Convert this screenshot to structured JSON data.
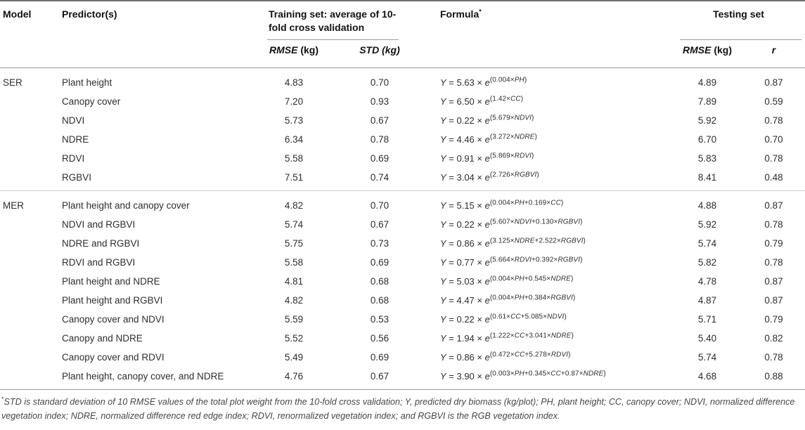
{
  "table": {
    "headers": {
      "model": "Model",
      "predictors": "Predictor(s)",
      "training_group": "Training set: average of 10-fold cross validation",
      "formula": "Formula",
      "formula_marker": "*",
      "testing_group": "Testing set",
      "train_rmse_label": "RMSE",
      "train_rmse_unit": " (kg)",
      "train_std_label": "STD (kg)",
      "test_rmse_label": "RMSE",
      "test_rmse_unit": " (kg)",
      "r_label": "r"
    },
    "formula_template": {
      "y": "Y",
      "eq": " = ",
      "times": " × ",
      "base": "e"
    },
    "sections": [
      {
        "model": "SER",
        "rows": [
          {
            "predictor": "Plant height",
            "train_rmse": "4.83",
            "train_std": "0.70",
            "formula": {
              "coef": "5.63",
              "exp": "(0.004×PH)"
            },
            "test_rmse": "4.89",
            "r": "0.87"
          },
          {
            "predictor": "Canopy cover",
            "train_rmse": "7.20",
            "train_std": "0.93",
            "formula": {
              "coef": "6.50",
              "exp": "(1.42×CC)"
            },
            "test_rmse": "7.89",
            "r": "0.59"
          },
          {
            "predictor": "NDVI",
            "train_rmse": "5.73",
            "train_std": "0.67",
            "formula": {
              "coef": "0.22",
              "exp": "(5.679×NDVI)"
            },
            "test_rmse": "5.92",
            "r": "0.78"
          },
          {
            "predictor": "NDRE",
            "train_rmse": "6.34",
            "train_std": "0.78",
            "formula": {
              "coef": "4.46",
              "exp": "(3.272×NDRE)"
            },
            "test_rmse": "6.70",
            "r": "0.70"
          },
          {
            "predictor": "RDVI",
            "train_rmse": "5.58",
            "train_std": "0.69",
            "formula": {
              "coef": "0.91",
              "exp": "(5.869×RDVI)"
            },
            "test_rmse": "5.83",
            "r": "0.78"
          },
          {
            "predictor": "RGBVI",
            "train_rmse": "7.51",
            "train_std": "0.74",
            "formula": {
              "coef": "3.04",
              "exp": "(2.726×RGBVI)"
            },
            "test_rmse": "8.41",
            "r": "0.48"
          }
        ]
      },
      {
        "model": "MER",
        "rows": [
          {
            "predictor": "Plant height and canopy cover",
            "train_rmse": "4.82",
            "train_std": "0.70",
            "formula": {
              "coef": "5.15",
              "exp": "(0.004×PH+0.169×CC)"
            },
            "test_rmse": "4.88",
            "r": "0.87"
          },
          {
            "predictor": "NDVI and RGBVI",
            "train_rmse": "5.74",
            "train_std": "0.67",
            "formula": {
              "coef": "0.22",
              "exp": "(5.607×NDVI+0.130×RGBVI)"
            },
            "test_rmse": "5.92",
            "r": "0.78"
          },
          {
            "predictor": "NDRE and RGBVI",
            "train_rmse": "5.75",
            "train_std": "0.73",
            "formula": {
              "coef": "0.86",
              "exp": "(3.125×NDRE+2.522×RGBVI)"
            },
            "test_rmse": "5.74",
            "r": "0.79"
          },
          {
            "predictor": "RDVI and RGBVI",
            "train_rmse": "5.58",
            "train_std": "0.69",
            "formula": {
              "coef": "0.77",
              "exp": "(5.664×RDVI+0.392×RGBVI)"
            },
            "test_rmse": "5.82",
            "r": "0.78"
          },
          {
            "predictor": "Plant height and NDRE",
            "train_rmse": "4.81",
            "train_std": "0.68",
            "formula": {
              "coef": "5.03",
              "exp": "(0.004×PH+0.545×NDRE)"
            },
            "test_rmse": "4.78",
            "r": "0.87"
          },
          {
            "predictor": "Plant height and RGBVI",
            "train_rmse": "4.82",
            "train_std": "0.68",
            "formula": {
              "coef": "4.47",
              "exp": "(0.004×PH+0.384×RGBVI)"
            },
            "test_rmse": "4.87",
            "r": "0.87"
          },
          {
            "predictor": "Canopy cover and NDVI",
            "train_rmse": "5.59",
            "train_std": "0.53",
            "formula": {
              "coef": "0.22",
              "exp": "(0.61×CC+5.085×NDVI)"
            },
            "test_rmse": "5.71",
            "r": "0.79"
          },
          {
            "predictor": "Canopy and NDRE",
            "train_rmse": "5.52",
            "train_std": "0.56",
            "formula": {
              "coef": "1.94",
              "exp": "(1.222×CC+3.041×NDRE)"
            },
            "test_rmse": "5.40",
            "r": "0.82"
          },
          {
            "predictor": "Canopy cover and RDVI",
            "train_rmse": "5.49",
            "train_std": "0.69",
            "formula": {
              "coef": "0.86",
              "exp": "(0.472×CC+5.278×RDVI)"
            },
            "test_rmse": "5.74",
            "r": "0.78"
          },
          {
            "predictor": "Plant height, canopy cover, and NDRE",
            "train_rmse": "4.76",
            "train_std": "0.67",
            "formula": {
              "coef": "3.90",
              "exp": "(0.003×PH+0.345×CC+0.87×NDRE)"
            },
            "test_rmse": "4.68",
            "r": "0.88"
          }
        ]
      }
    ]
  },
  "footnote": {
    "marker": "*",
    "text": "STD is standard deviation of 10 RMSE values of the total plot weight from the 10-fold cross validation; Y, predicted dry biomass (kg/plot); PH, plant height; CC, canopy cover; NDVI, normalized difference vegetation index; NDRE, normalized difference red edge index; RDVI, renormalized vegetation index; and RGBVI is the RGB vegetation index."
  }
}
